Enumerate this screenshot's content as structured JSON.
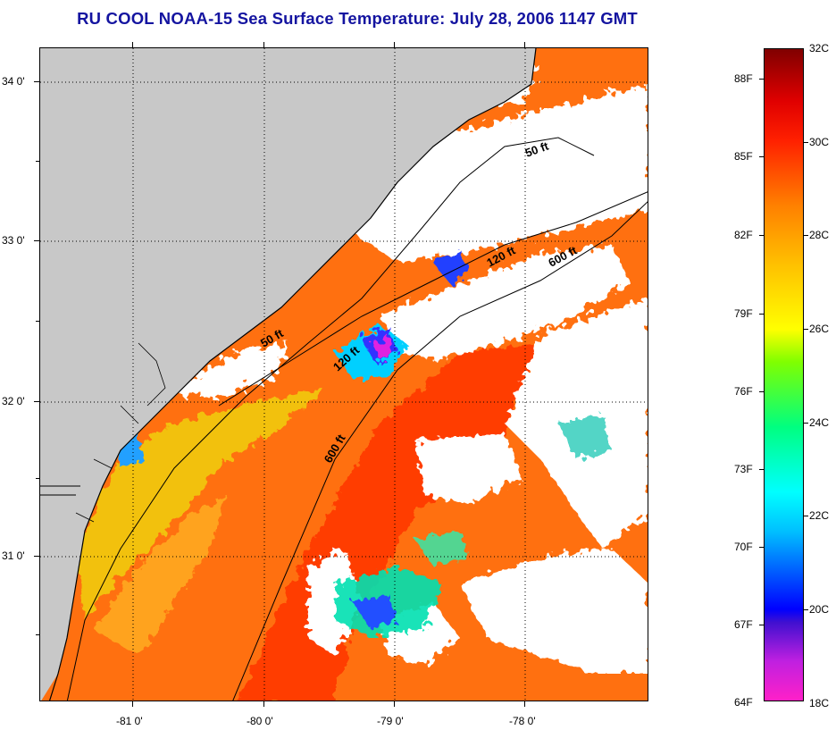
{
  "title": "RU COOL  NOAA-15  Sea Surface Temperature:  July 28, 2006 1147 GMT",
  "axes": {
    "lat_labels": [
      "34 0'",
      "33 0'",
      "32 0'",
      "31 0'"
    ],
    "lon_labels": [
      "-81 0'",
      "-80 0'",
      "-79 0'",
      "-78 0'"
    ]
  },
  "isobaths": [
    {
      "label": "50 ft"
    },
    {
      "label": "120 ft"
    },
    {
      "label": "600 ft"
    },
    {
      "label": "50 ft"
    },
    {
      "label": "120 ft"
    },
    {
      "label": "600 ft"
    }
  ],
  "colorbar": {
    "fahrenheit": [
      "88F",
      "85F",
      "82F",
      "79F",
      "76F",
      "73F",
      "70F",
      "67F",
      "64F"
    ],
    "celsius": [
      "32C",
      "30C",
      "28C",
      "26C",
      "24C",
      "22C",
      "20C",
      "18C"
    ],
    "colors": [
      "#ff20c8",
      "#4010d0",
      "#0000ff",
      "#00ffff",
      "#00ff80",
      "#ffff00",
      "#ff8000",
      "#ff2000",
      "#800000"
    ]
  },
  "colors": {
    "land": "#c8c8c8",
    "cloud": "#ffffff",
    "warm": "#ff7010",
    "hot": "#ff3c00",
    "mid": "#ffa010",
    "cool": "#e0f000",
    "cold": "#00d0ff",
    "coldest": "#3030ff",
    "magenta": "#e020e0"
  }
}
